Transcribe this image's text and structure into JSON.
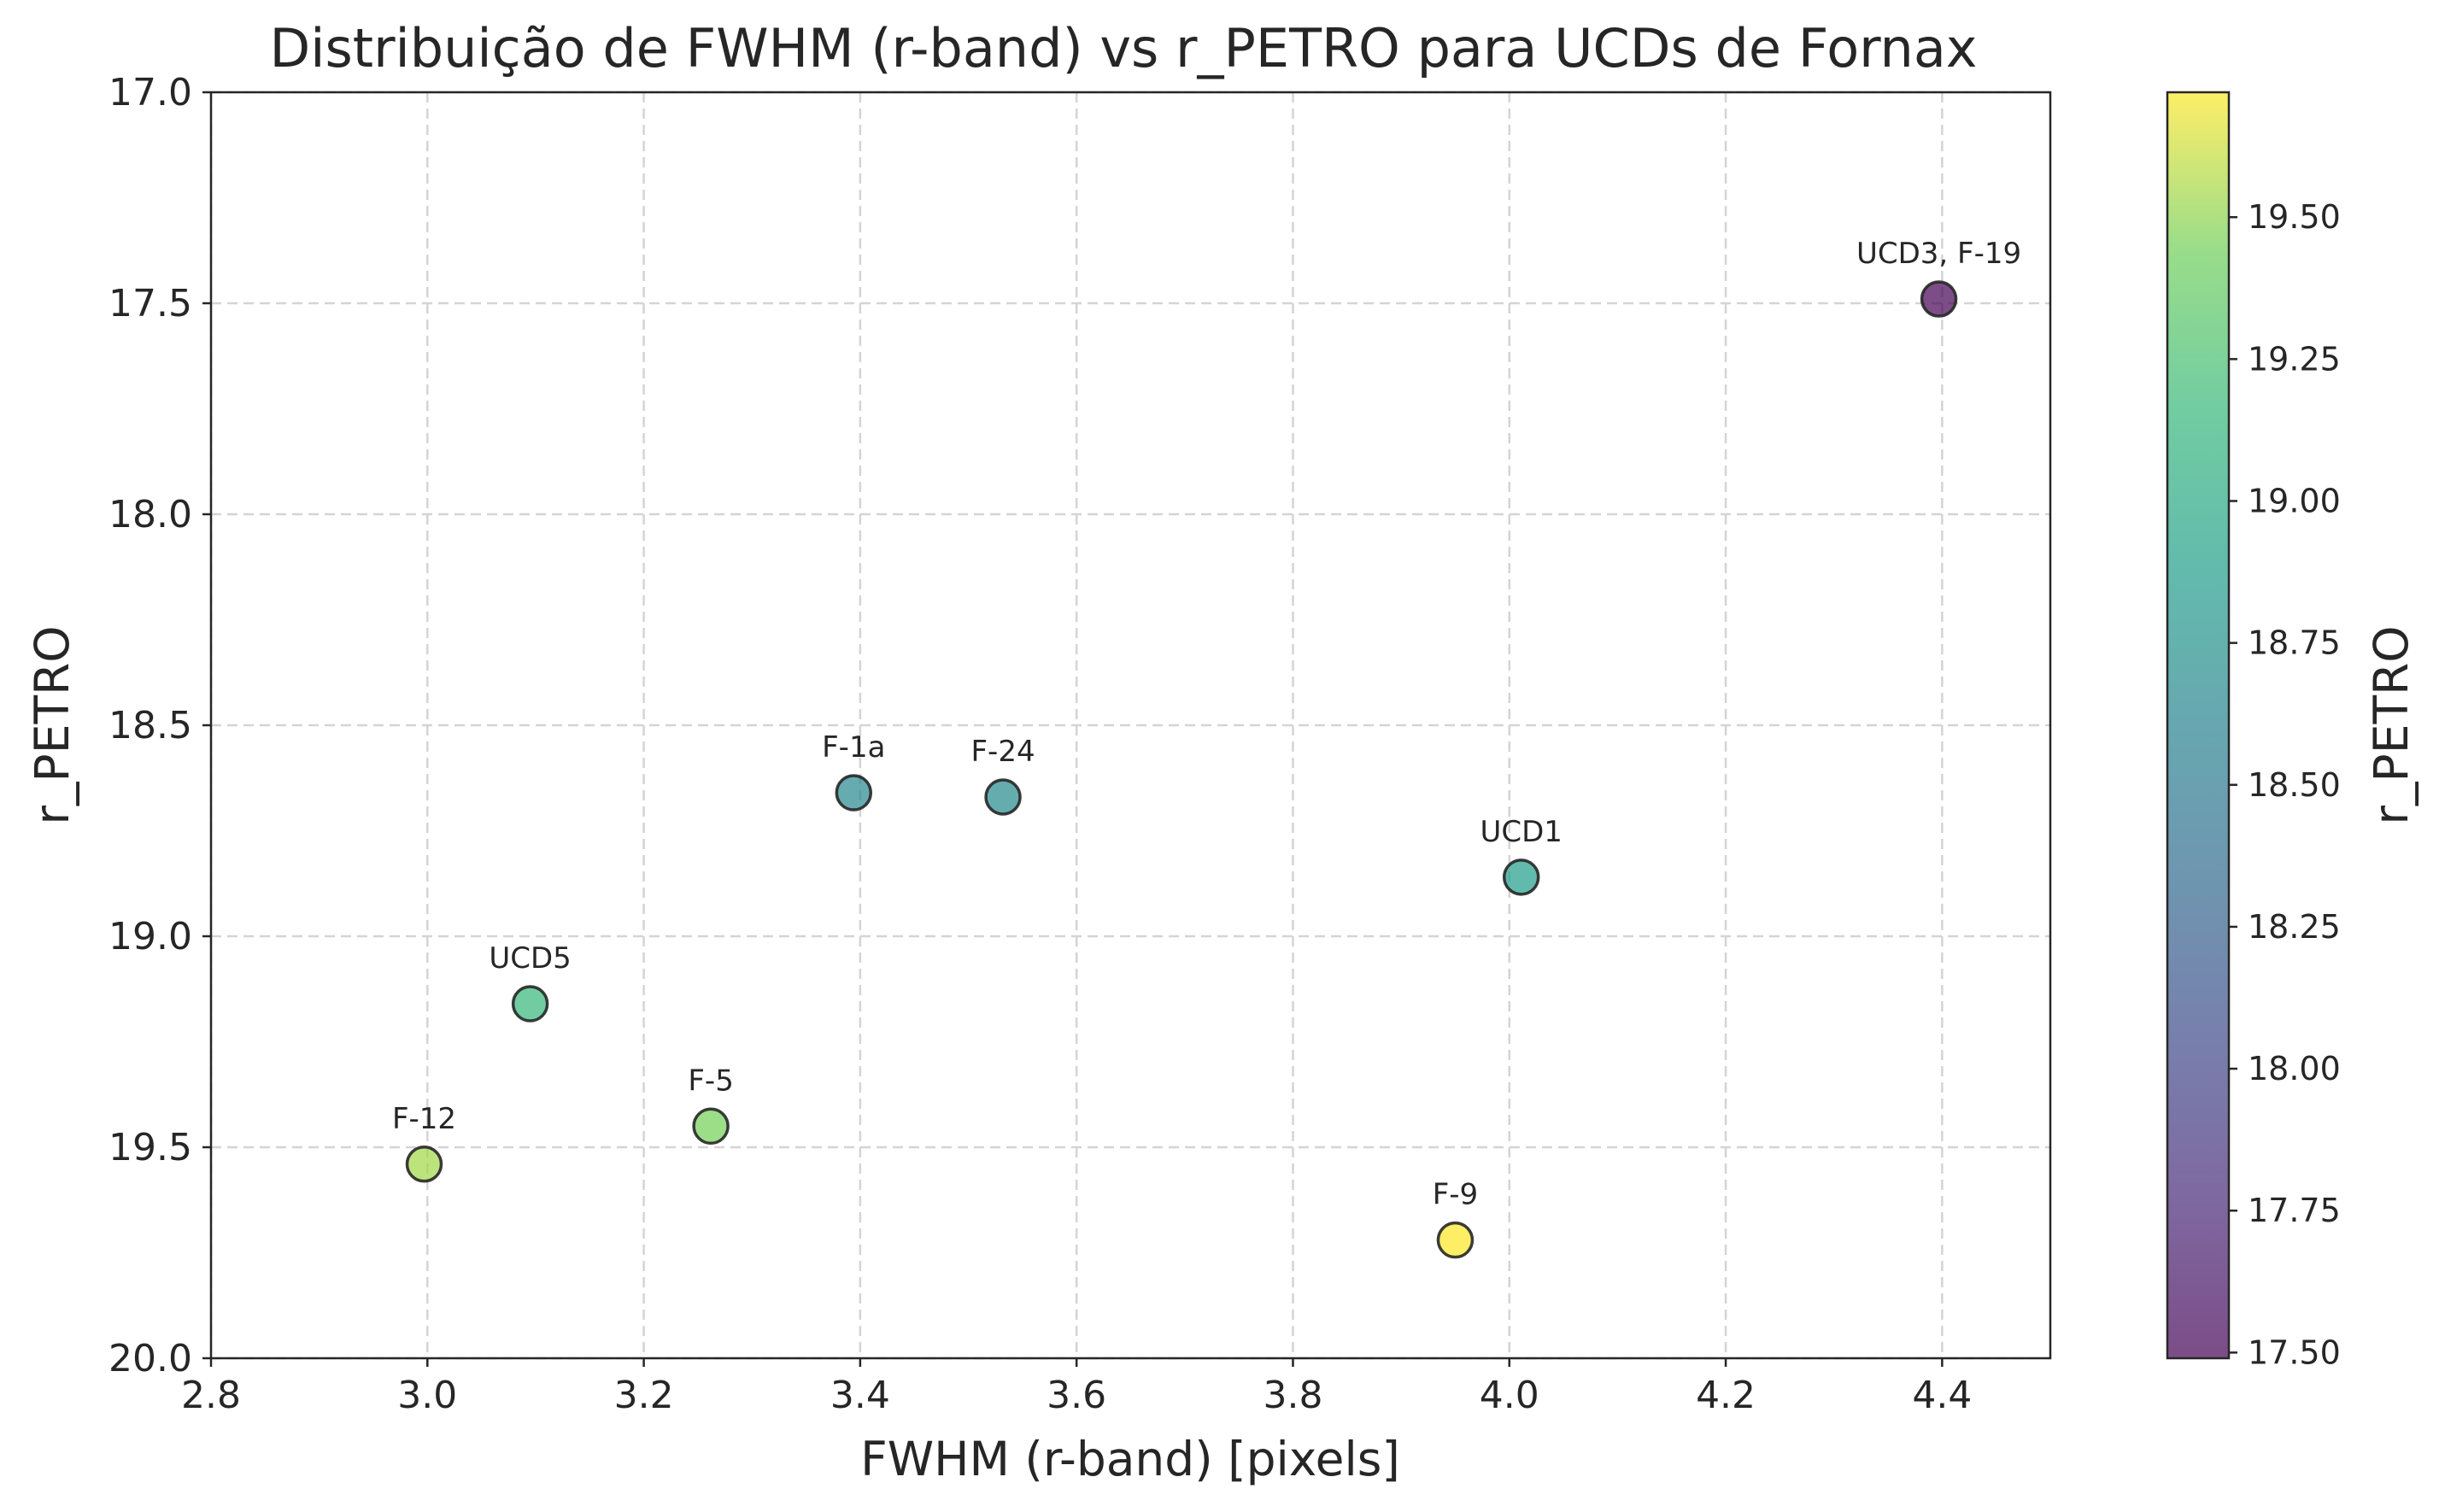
{
  "chart_data": {
    "type": "scatter",
    "title": "Distribuição de FWHM (r-band) vs r_PETRO para UCDs de Fornax",
    "xlabel": "FWHM (r-band) [pixels]",
    "ylabel": "r_PETRO",
    "xlim": [
      2.8,
      4.5
    ],
    "ylim": [
      20.0,
      17.0
    ],
    "y_inverted": true,
    "xticks": [
      "2.8",
      "3.0",
      "3.2",
      "3.4",
      "3.6",
      "3.8",
      "4.0",
      "4.2",
      "4.4"
    ],
    "yticks": [
      "17.0",
      "17.5",
      "18.0",
      "18.5",
      "19.0",
      "19.5",
      "20.0"
    ],
    "grid": true,
    "colormap": "viridis",
    "point_alpha": 0.7,
    "colorbar": {
      "label": "r_PETRO",
      "range": [
        17.49,
        19.72
      ],
      "ticks": [
        "17.50",
        "17.75",
        "18.00",
        "18.25",
        "18.50",
        "18.75",
        "19.00",
        "19.25",
        "19.50"
      ]
    },
    "points": [
      {
        "label": "UCD3, F-19",
        "x": 4.397,
        "y": 17.49
      },
      {
        "label": "F-1a",
        "x": 3.394,
        "y": 18.66
      },
      {
        "label": "F-24",
        "x": 3.532,
        "y": 18.67
      },
      {
        "label": "UCD1",
        "x": 4.011,
        "y": 18.86
      },
      {
        "label": "UCD5",
        "x": 3.095,
        "y": 19.16
      },
      {
        "label": "F-5",
        "x": 3.262,
        "y": 19.45
      },
      {
        "label": "F-12",
        "x": 2.997,
        "y": 19.54
      },
      {
        "label": "F-9",
        "x": 3.95,
        "y": 19.72
      }
    ]
  }
}
